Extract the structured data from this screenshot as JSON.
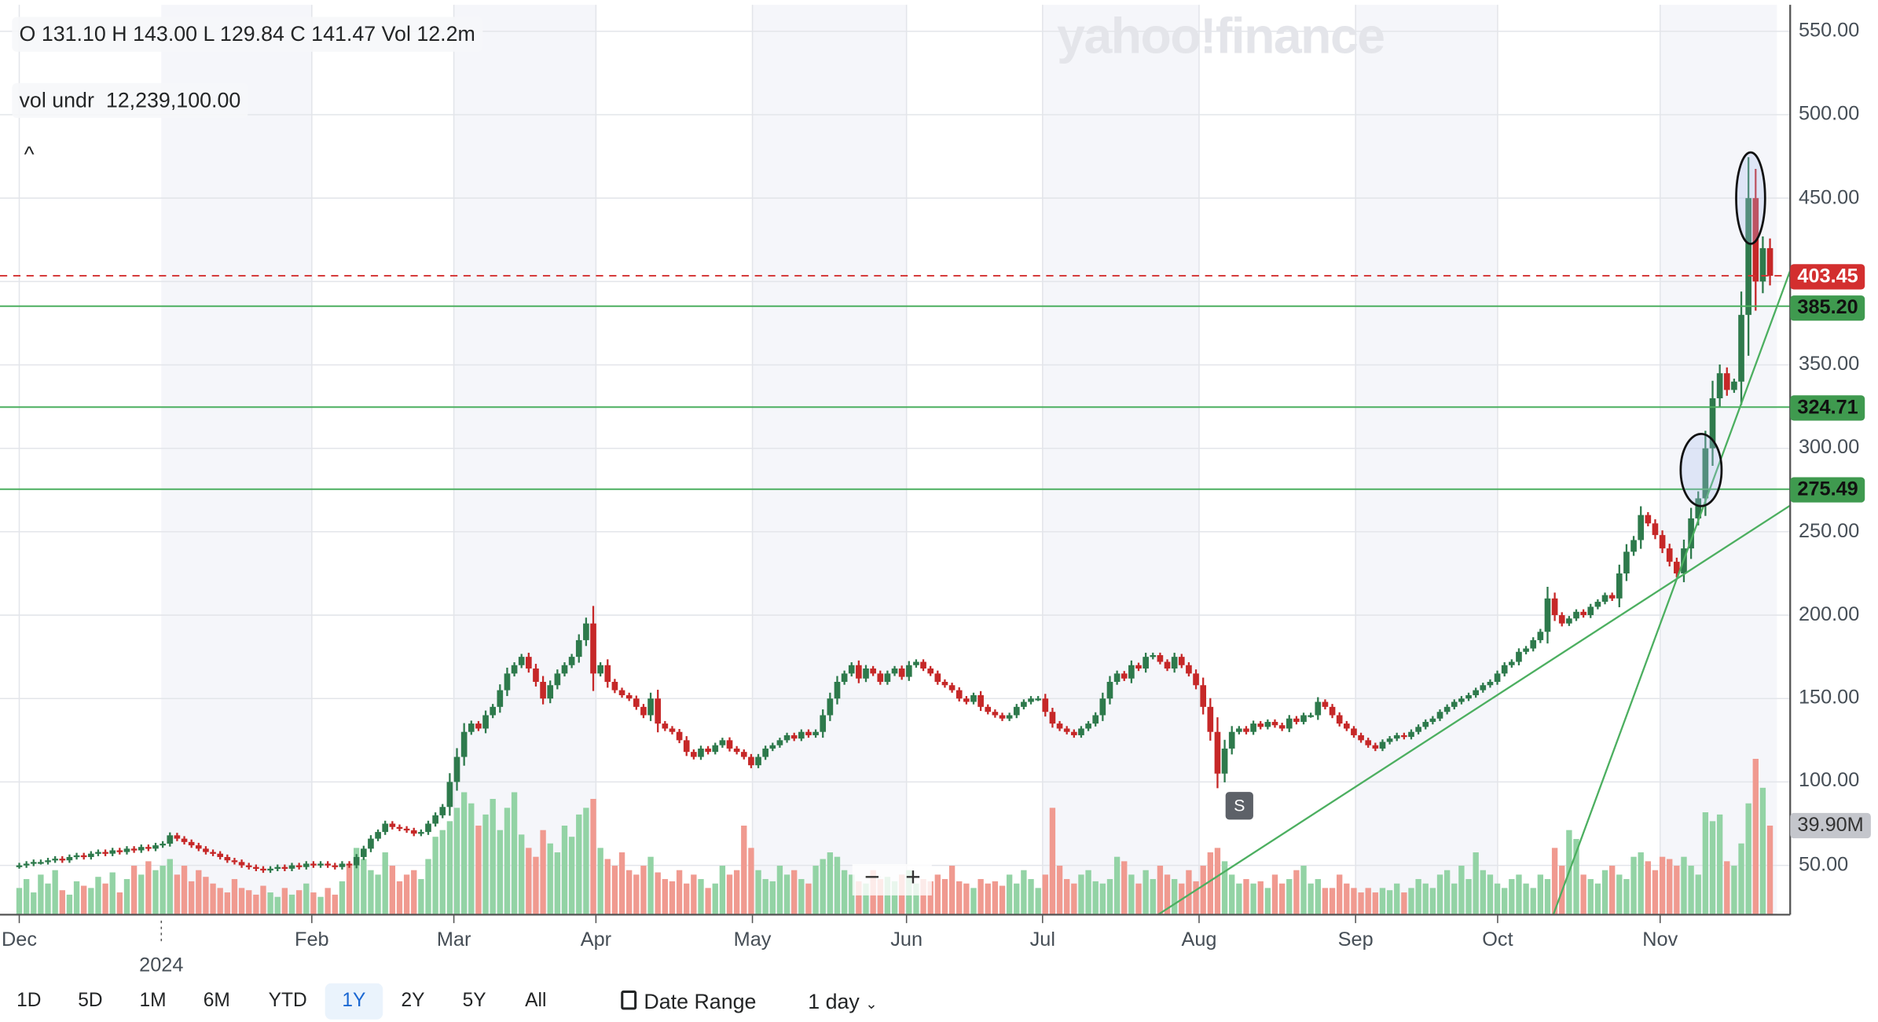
{
  "ohlc_bar": {
    "text": "O 131.10  H 143.00  L 129.84  C 141.47  Vol 12.2m"
  },
  "vol_indicator": {
    "label": "vol undr",
    "value": "12,239,100.00"
  },
  "collapse_label": "^",
  "watermark": "yahoo!finance",
  "zoom_controls": {
    "minus": "−",
    "plus": "+"
  },
  "event_marker": "S",
  "range_buttons": [
    "1D",
    "5D",
    "1M",
    "6M",
    "YTD",
    "1Y",
    "2Y",
    "5Y",
    "All"
  ],
  "active_range": "1Y",
  "date_range_label": "Date Range",
  "interval_label": "1 day",
  "colors": {
    "up": "#2e7a4c",
    "down": "#c62828",
    "vol_up": "#93d3a5",
    "vol_down": "#f09a90",
    "hline": "#4caf60",
    "last_price": "#d32f2f",
    "shade": "#f5f6fa"
  },
  "chart_data": {
    "type": "candlestick",
    "y_ticks": [
      "550.00",
      "500.00",
      "450.00",
      "350.00",
      "300.00",
      "250.00",
      "200.00",
      "150.00",
      "100.00",
      "50.00"
    ],
    "ylim": [
      20,
      560
    ],
    "x_ticks": [
      "Dec",
      "Feb",
      "Mar",
      "Apr",
      "May",
      "Jun",
      "Jul",
      "Aug",
      "Sep",
      "Oct",
      "Nov"
    ],
    "year_label": "2024",
    "last_price": "403.45",
    "horizontal_lines": [
      "385.20",
      "324.71",
      "275.49"
    ],
    "volume_tag": "39.90M",
    "trendlines": [
      {
        "from": [
          158.7,
          20.4
        ],
        "to": [
          246.8,
          265.7
        ]
      },
      {
        "from": [
          213.8,
          20.4
        ],
        "to": [
          246.8,
          406.4
        ]
      }
    ],
    "annotations": [
      {
        "type": "ellipse",
        "center": [
          234.4,
          287
        ]
      },
      {
        "type": "ellipse",
        "center": [
          241.3,
          450
        ]
      }
    ],
    "closes": [
      50,
      51,
      52,
      52,
      53,
      54,
      53,
      55,
      56,
      55,
      57,
      58,
      57,
      59,
      58,
      60,
      59,
      61,
      60,
      62,
      63,
      68,
      66,
      64,
      62,
      60,
      58,
      57,
      55,
      53,
      52,
      50,
      49,
      48,
      47,
      48,
      49,
      48,
      50,
      49,
      51,
      50,
      51,
      50,
      49,
      51,
      50,
      55,
      60,
      66,
      70,
      75,
      73,
      72,
      71,
      69,
      70,
      75,
      80,
      85,
      100,
      115,
      130,
      135,
      132,
      140,
      145,
      155,
      165,
      170,
      175,
      168,
      160,
      150,
      158,
      165,
      170,
      175,
      185,
      195,
      165,
      170,
      160,
      155,
      152,
      150,
      145,
      140,
      150,
      135,
      132,
      130,
      125,
      118,
      115,
      120,
      118,
      122,
      125,
      120,
      118,
      115,
      110,
      115,
      120,
      122,
      125,
      128,
      126,
      130,
      128,
      130,
      140,
      150,
      160,
      165,
      170,
      162,
      168,
      165,
      160,
      165,
      168,
      163,
      170,
      172,
      168,
      165,
      160,
      158,
      155,
      150,
      148,
      152,
      145,
      142,
      140,
      138,
      140,
      145,
      148,
      150,
      150,
      142,
      135,
      132,
      130,
      128,
      132,
      135,
      140,
      150,
      160,
      165,
      162,
      170,
      168,
      175,
      176,
      172,
      168,
      175,
      170,
      165,
      158,
      145,
      130,
      105,
      120,
      130,
      132,
      130,
      135,
      133,
      136,
      134,
      132,
      138,
      136,
      140,
      140,
      148,
      145,
      140,
      135,
      132,
      128,
      125,
      122,
      120,
      124,
      126,
      128,
      127,
      130,
      133,
      136,
      138,
      142,
      145,
      148,
      150,
      152,
      155,
      158,
      160,
      165,
      170,
      172,
      178,
      180,
      185,
      190,
      210,
      200,
      195,
      198,
      202,
      200,
      205,
      208,
      212,
      210,
      225,
      238,
      245,
      260,
      255,
      248,
      240,
      232,
      225,
      240,
      258,
      270,
      300,
      330,
      345,
      335,
      340,
      380,
      450,
      400,
      420,
      403.45
    ],
    "volume_millions": [
      12,
      16,
      10,
      18,
      14,
      20,
      11,
      9,
      15,
      13,
      12,
      17,
      14,
      19,
      10,
      16,
      22,
      18,
      24,
      20,
      22,
      25,
      18,
      22,
      15,
      20,
      17,
      14,
      12,
      10,
      16,
      12,
      11,
      9,
      13,
      10,
      8,
      12,
      9,
      11,
      14,
      10,
      8,
      12,
      9,
      15,
      22,
      30,
      25,
      20,
      18,
      28,
      22,
      15,
      18,
      20,
      16,
      25,
      35,
      38,
      42,
      48,
      55,
      50,
      40,
      45,
      52,
      38,
      48,
      55,
      36,
      30,
      26,
      38,
      32,
      28,
      40,
      35,
      45,
      48,
      52,
      30,
      25,
      22,
      28,
      20,
      18,
      22,
      26,
      19,
      16,
      15,
      20,
      14,
      18,
      16,
      12,
      14,
      22,
      18,
      20,
      40,
      30,
      20,
      16,
      15,
      22,
      18,
      20,
      16,
      14,
      22,
      25,
      28,
      26,
      20,
      18,
      15,
      14,
      20,
      16,
      17,
      15,
      18,
      20,
      14,
      16,
      15,
      18,
      16,
      22,
      15,
      14,
      12,
      16,
      14,
      15,
      13,
      18,
      14,
      20,
      16,
      12,
      18,
      48,
      22,
      16,
      14,
      18,
      20,
      15,
      14,
      16,
      26,
      24,
      18,
      14,
      20,
      16,
      22,
      18,
      16,
      14,
      20,
      15,
      22,
      28,
      30,
      24,
      18,
      14,
      16,
      14,
      15,
      12,
      18,
      14,
      16,
      20,
      22,
      14,
      16,
      12,
      12,
      18,
      14,
      12,
      10,
      12,
      10,
      12,
      11,
      14,
      10,
      12,
      16,
      14,
      12,
      18,
      20,
      14,
      22,
      16,
      28,
      20,
      18,
      14,
      12,
      16,
      18,
      14,
      12,
      18,
      16,
      30,
      22,
      38,
      34,
      18,
      16,
      14,
      20,
      22,
      18,
      16,
      26,
      28,
      24,
      20,
      26,
      25,
      22,
      26,
      22,
      18,
      46,
      42,
      45,
      24,
      22,
      32,
      50,
      70,
      57,
      40
    ]
  }
}
